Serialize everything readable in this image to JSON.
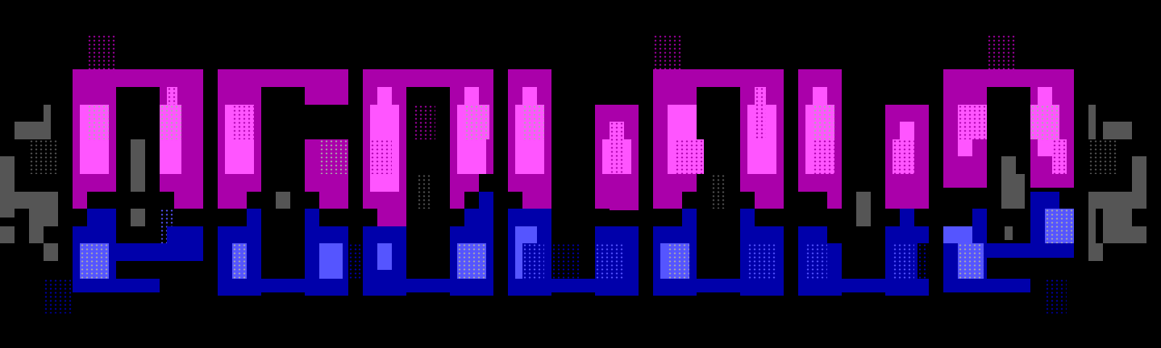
{
  "artwork": {
    "type": "ansi-block-logo",
    "palette": {
      "background": "#000000",
      "magenta": "#AA00AA",
      "pink": "#FF55FF",
      "blue": "#0000AA",
      "light_blue": "#5555FF",
      "dark_gray": "#555555",
      "light_gray": "#AAAAAA"
    }
  }
}
